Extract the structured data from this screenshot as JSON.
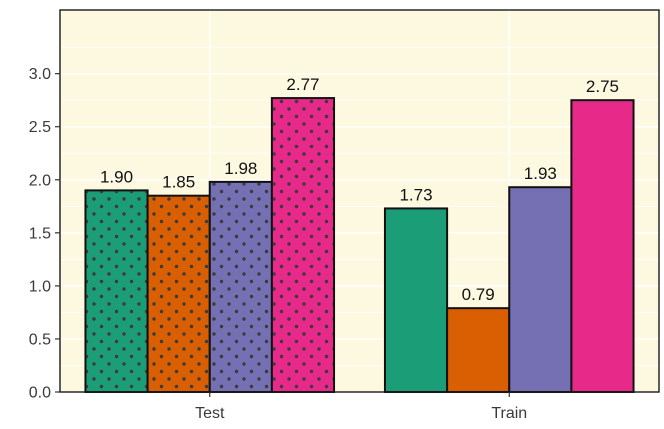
{
  "chart_data": {
    "type": "bar",
    "categories": [
      "Test",
      "Train"
    ],
    "series": [
      {
        "values": [
          1.9,
          1.73
        ],
        "labels": [
          "1.90",
          "1.73"
        ],
        "color": "#1b9e77"
      },
      {
        "values": [
          1.85,
          0.79
        ],
        "labels": [
          "1.85",
          "0.79"
        ],
        "color": "#d95f02"
      },
      {
        "values": [
          1.98,
          1.93
        ],
        "labels": [
          "1.98",
          "1.93"
        ],
        "color": "#7570b3"
      },
      {
        "values": [
          2.77,
          2.75
        ],
        "labels": [
          "2.77",
          "2.75"
        ],
        "color": "#e7298a"
      }
    ],
    "patterned_category": "Test",
    "pattern": "dots",
    "ylim": [
      0,
      3.6
    ],
    "yticks": [
      0.0,
      0.5,
      1.0,
      1.5,
      2.0,
      2.5,
      3.0
    ],
    "ytick_labels": [
      "0.0",
      "0.5",
      "1.0",
      "1.5",
      "2.0",
      "2.5",
      "3.0"
    ],
    "grid": true,
    "title": "",
    "xlabel": "",
    "ylabel": "",
    "panel_background": "#fdf9e1",
    "border_color": "#1a1a1a"
  }
}
